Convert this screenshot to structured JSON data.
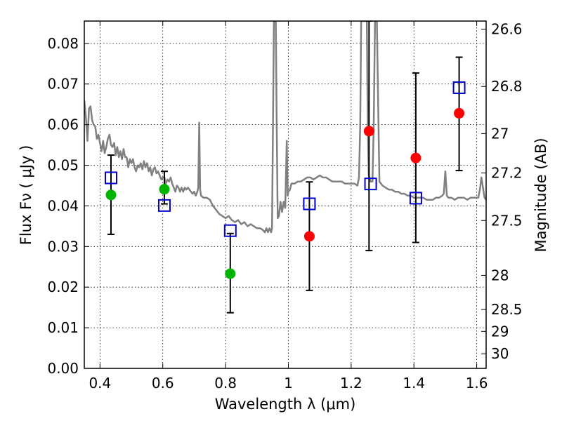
{
  "chart_data": {
    "type": "scatter",
    "title": "",
    "xlabel": "Wavelength  λ (μm)",
    "ylabel": "Flux  Fν  ( μJy )",
    "y2label": "Magnitude (AB)",
    "xlim": [
      0.35,
      1.63
    ],
    "ylim": [
      0.0,
      0.0855
    ],
    "grid": true,
    "legend": "none",
    "x_ticks": [
      0.4,
      0.6,
      0.8,
      1.0,
      1.2,
      1.4,
      1.6
    ],
    "x_tick_labels": [
      "0.4",
      "0.6",
      "0.8",
      "1",
      "1.2",
      "1.4",
      "1.6"
    ],
    "y_ticks": [
      0.0,
      0.01,
      0.02,
      0.03,
      0.04,
      0.05,
      0.06,
      0.07,
      0.08
    ],
    "y_tick_labels": [
      "0.00",
      "0.01",
      "0.02",
      "0.03",
      "0.04",
      "0.05",
      "0.06",
      "0.07",
      "0.08"
    ],
    "y2_ticks": [
      {
        "label": "26.6",
        "flux": 0.0835
      },
      {
        "label": "26.8",
        "flux": 0.0694
      },
      {
        "label": "27",
        "flux": 0.0578
      },
      {
        "label": "27.2",
        "flux": 0.0481
      },
      {
        "label": "27.5",
        "flux": 0.0364
      },
      {
        "label": "28",
        "flux": 0.0229
      },
      {
        "label": "28.5",
        "flux": 0.0145
      },
      {
        "label": "29",
        "flux": 0.0091
      },
      {
        "label": "30",
        "flux": 0.0036
      }
    ],
    "colors": {
      "spectrum": "#808080",
      "green": "#00b400",
      "red": "#ff0000",
      "box": "#0000cc",
      "errorbar": "#000000"
    },
    "series": [
      {
        "marker": "filled-circle-green",
        "points": [
          {
            "x": 0.435,
            "y": 0.0427,
            "err": [
              0.033,
              0.0525
            ]
          },
          {
            "x": 0.605,
            "y": 0.0441,
            "err": [
              0.0405,
              0.0485
            ]
          },
          {
            "x": 0.815,
            "y": 0.0233,
            "err": [
              0.0137,
              0.0332
            ]
          }
        ]
      },
      {
        "marker": "filled-circle-red",
        "points": [
          {
            "x": 1.067,
            "y": 0.0325,
            "err": [
              0.0192,
              0.0459
            ]
          },
          {
            "x": 1.257,
            "y": 0.0584,
            "err": [
              0.029,
              0.0855
            ]
          },
          {
            "x": 1.406,
            "y": 0.0518,
            "err": [
              0.031,
              0.0727
            ]
          },
          {
            "x": 1.544,
            "y": 0.0628,
            "err": [
              0.0487,
              0.0766
            ]
          }
        ]
      },
      {
        "marker": "open-square-blue",
        "points": [
          {
            "x": 0.435,
            "y": 0.0469
          },
          {
            "x": 0.605,
            "y": 0.0401
          },
          {
            "x": 0.815,
            "y": 0.0339
          },
          {
            "x": 1.067,
            "y": 0.0405
          },
          {
            "x": 1.262,
            "y": 0.0454
          },
          {
            "x": 1.406,
            "y": 0.0419
          },
          {
            "x": 1.544,
            "y": 0.0691
          }
        ]
      },
      {
        "marker": "line-grey",
        "points": [
          [
            0.35,
            0.066
          ],
          [
            0.355,
            0.062
          ],
          [
            0.36,
            0.056
          ],
          [
            0.365,
            0.064
          ],
          [
            0.37,
            0.0645
          ],
          [
            0.375,
            0.061
          ],
          [
            0.38,
            0.06
          ],
          [
            0.385,
            0.0595
          ],
          [
            0.39,
            0.0565
          ],
          [
            0.395,
            0.0575
          ],
          [
            0.4,
            0.0555
          ],
          [
            0.405,
            0.0535
          ],
          [
            0.41,
            0.056
          ],
          [
            0.415,
            0.053
          ],
          [
            0.42,
            0.0545
          ],
          [
            0.425,
            0.0565
          ],
          [
            0.43,
            0.0575
          ],
          [
            0.435,
            0.055
          ],
          [
            0.44,
            0.0545
          ],
          [
            0.445,
            0.0555
          ],
          [
            0.45,
            0.0525
          ],
          [
            0.455,
            0.0545
          ],
          [
            0.46,
            0.052
          ],
          [
            0.465,
            0.0535
          ],
          [
            0.47,
            0.0515
          ],
          [
            0.475,
            0.054
          ],
          [
            0.48,
            0.052
          ],
          [
            0.485,
            0.052
          ],
          [
            0.49,
            0.0495
          ],
          [
            0.495,
            0.0515
          ],
          [
            0.5,
            0.0505
          ],
          [
            0.505,
            0.0515
          ],
          [
            0.51,
            0.0495
          ],
          [
            0.515,
            0.0485
          ],
          [
            0.52,
            0.05
          ],
          [
            0.525,
            0.0495
          ],
          [
            0.53,
            0.0505
          ],
          [
            0.535,
            0.049
          ],
          [
            0.54,
            0.051
          ],
          [
            0.545,
            0.0495
          ],
          [
            0.55,
            0.0505
          ],
          [
            0.555,
            0.0485
          ],
          [
            0.56,
            0.0495
          ],
          [
            0.565,
            0.0475
          ],
          [
            0.57,
            0.049
          ],
          [
            0.575,
            0.0495
          ],
          [
            0.58,
            0.048
          ],
          [
            0.585,
            0.0485
          ],
          [
            0.59,
            0.0475
          ],
          [
            0.595,
            0.0465
          ],
          [
            0.6,
            0.047
          ],
          [
            0.605,
            0.047
          ],
          [
            0.61,
            0.0455
          ],
          [
            0.615,
            0.0465
          ],
          [
            0.62,
            0.046
          ],
          [
            0.625,
            0.047
          ],
          [
            0.63,
            0.0455
          ],
          [
            0.635,
            0.0445
          ],
          [
            0.64,
            0.0435
          ],
          [
            0.645,
            0.045
          ],
          [
            0.65,
            0.0445
          ],
          [
            0.655,
            0.0435
          ],
          [
            0.66,
            0.0445
          ],
          [
            0.665,
            0.0435
          ],
          [
            0.67,
            0.0445
          ],
          [
            0.675,
            0.044
          ],
          [
            0.68,
            0.0445
          ],
          [
            0.685,
            0.044
          ],
          [
            0.69,
            0.0435
          ],
          [
            0.695,
            0.043
          ],
          [
            0.7,
            0.0435
          ],
          [
            0.705,
            0.0425
          ],
          [
            0.71,
            0.0435
          ],
          [
            0.713,
            0.0445
          ],
          [
            0.716,
            0.0605
          ],
          [
            0.719,
            0.044
          ],
          [
            0.722,
            0.0425
          ],
          [
            0.73,
            0.042
          ],
          [
            0.74,
            0.042
          ],
          [
            0.75,
            0.0415
          ],
          [
            0.76,
            0.04
          ],
          [
            0.77,
            0.039
          ],
          [
            0.78,
            0.038
          ],
          [
            0.79,
            0.0375
          ],
          [
            0.8,
            0.037
          ],
          [
            0.81,
            0.0375
          ],
          [
            0.82,
            0.0365
          ],
          [
            0.83,
            0.036
          ],
          [
            0.84,
            0.0365
          ],
          [
            0.85,
            0.0355
          ],
          [
            0.86,
            0.036
          ],
          [
            0.87,
            0.035
          ],
          [
            0.88,
            0.0355
          ],
          [
            0.89,
            0.035
          ],
          [
            0.9,
            0.0345
          ],
          [
            0.91,
            0.0345
          ],
          [
            0.92,
            0.034
          ],
          [
            0.925,
            0.0335
          ],
          [
            0.93,
            0.0345
          ],
          [
            0.935,
            0.0335
          ],
          [
            0.94,
            0.0345
          ],
          [
            0.945,
            0.0335
          ],
          [
            0.948,
            0.0345
          ],
          [
            0.951,
            0.06
          ],
          [
            0.954,
            0.0855
          ],
          [
            0.96,
            0.0855
          ],
          [
            0.963,
            0.06
          ],
          [
            0.966,
            0.037
          ],
          [
            0.97,
            0.0375
          ],
          [
            0.975,
            0.041
          ],
          [
            0.98,
            0.0385
          ],
          [
            0.985,
            0.041
          ],
          [
            0.99,
            0.0395
          ],
          [
            0.995,
            0.056
          ],
          [
            0.998,
            0.0425
          ],
          [
            1.0,
            0.0435
          ],
          [
            1.005,
            0.044
          ],
          [
            1.01,
            0.0455
          ],
          [
            1.02,
            0.0455
          ],
          [
            1.03,
            0.046
          ],
          [
            1.04,
            0.046
          ],
          [
            1.05,
            0.0465
          ],
          [
            1.06,
            0.047
          ],
          [
            1.07,
            0.047
          ],
          [
            1.08,
            0.0465
          ],
          [
            1.09,
            0.047
          ],
          [
            1.1,
            0.0475
          ],
          [
            1.11,
            0.047
          ],
          [
            1.12,
            0.047
          ],
          [
            1.13,
            0.0465
          ],
          [
            1.14,
            0.046
          ],
          [
            1.15,
            0.046
          ],
          [
            1.16,
            0.046
          ],
          [
            1.17,
            0.046
          ],
          [
            1.18,
            0.0455
          ],
          [
            1.19,
            0.0455
          ],
          [
            1.2,
            0.0455
          ],
          [
            1.21,
            0.0455
          ],
          [
            1.22,
            0.045
          ],
          [
            1.225,
            0.047
          ],
          [
            1.229,
            0.06
          ],
          [
            1.232,
            0.0855
          ],
          [
            1.25,
            0.0855
          ],
          [
            1.253,
            0.06
          ],
          [
            1.256,
            0.0475
          ],
          [
            1.262,
            0.046
          ],
          [
            1.268,
            0.046
          ],
          [
            1.272,
            0.06
          ],
          [
            1.276,
            0.0855
          ],
          [
            1.282,
            0.0855
          ],
          [
            1.286,
            0.065
          ],
          [
            1.29,
            0.046
          ],
          [
            1.3,
            0.045
          ],
          [
            1.31,
            0.0445
          ],
          [
            1.32,
            0.044
          ],
          [
            1.33,
            0.044
          ],
          [
            1.34,
            0.0435
          ],
          [
            1.35,
            0.0435
          ],
          [
            1.36,
            0.043
          ],
          [
            1.37,
            0.043
          ],
          [
            1.38,
            0.0425
          ],
          [
            1.39,
            0.0425
          ],
          [
            1.4,
            0.042
          ],
          [
            1.41,
            0.042
          ],
          [
            1.42,
            0.042
          ],
          [
            1.43,
            0.042
          ],
          [
            1.44,
            0.0415
          ],
          [
            1.45,
            0.0415
          ],
          [
            1.46,
            0.0415
          ],
          [
            1.47,
            0.042
          ],
          [
            1.48,
            0.042
          ],
          [
            1.49,
            0.0425
          ],
          [
            1.495,
            0.043
          ],
          [
            1.5,
            0.0485
          ],
          [
            1.505,
            0.0425
          ],
          [
            1.51,
            0.042
          ],
          [
            1.52,
            0.042
          ],
          [
            1.53,
            0.0415
          ],
          [
            1.54,
            0.042
          ],
          [
            1.55,
            0.042
          ],
          [
            1.56,
            0.042
          ],
          [
            1.57,
            0.0415
          ],
          [
            1.58,
            0.042
          ],
          [
            1.59,
            0.042
          ],
          [
            1.6,
            0.042
          ],
          [
            1.605,
            0.042
          ],
          [
            1.61,
            0.044
          ],
          [
            1.615,
            0.047
          ],
          [
            1.62,
            0.0445
          ],
          [
            1.625,
            0.042
          ],
          [
            1.63,
            0.0415
          ]
        ]
      }
    ]
  }
}
